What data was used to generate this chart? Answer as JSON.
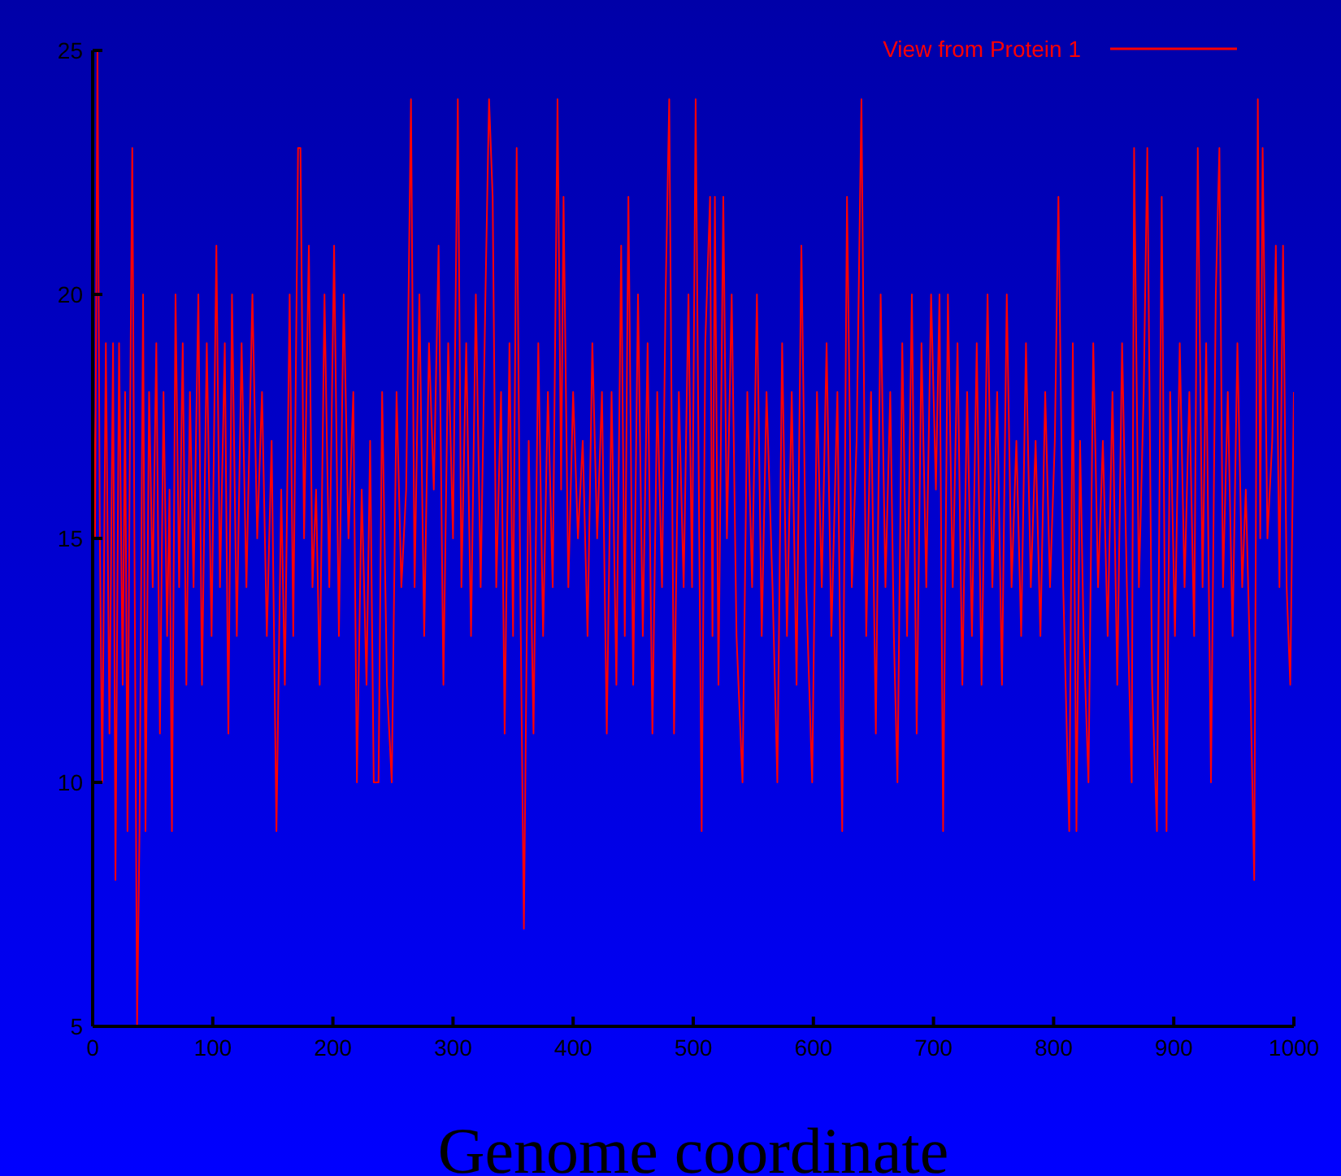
{
  "chart_data": {
    "type": "line",
    "xlabel": "Genome coordinate",
    "legend": "top right",
    "xlim": [
      0,
      1000
    ],
    "xticks": [
      0,
      100,
      200,
      300,
      400,
      500,
      600,
      700,
      800,
      900,
      1000
    ],
    "ylim": [
      5,
      25
    ],
    "yticks": [
      5,
      10,
      15,
      20,
      25
    ],
    "x": [
      0,
      2,
      4,
      6,
      8,
      11,
      14,
      17,
      19,
      22,
      25,
      27,
      29,
      31,
      33,
      35,
      37,
      39,
      42,
      44,
      47,
      50,
      53,
      56,
      59,
      62,
      64,
      66,
      69,
      72,
      75,
      78,
      81,
      84,
      88,
      91,
      95,
      99,
      103,
      106,
      110,
      113,
      116,
      120,
      124,
      128,
      133,
      137,
      141,
      145,
      149,
      153,
      157,
      160,
      164,
      167,
      171,
      173,
      176,
      180,
      183,
      186,
      189,
      193,
      197,
      201,
      205,
      209,
      213,
      217,
      220,
      224,
      228,
      231,
      234,
      238,
      241,
      245,
      249,
      253,
      257,
      261,
      265,
      268,
      272,
      276,
      280,
      284,
      288,
      292,
      296,
      300,
      304,
      307,
      311,
      315,
      319,
      323,
      327,
      330,
      333,
      336,
      340,
      343,
      347,
      350,
      353,
      356,
      359,
      363,
      367,
      371,
      375,
      379,
      383,
      387,
      390,
      392,
      396,
      400,
      404,
      408,
      412,
      416,
      420,
      424,
      428,
      432,
      436,
      440,
      443,
      446,
      450,
      454,
      458,
      462,
      466,
      470,
      474,
      477,
      480,
      484,
      488,
      492,
      496,
      499,
      502,
      505,
      507,
      510,
      514,
      516,
      518,
      521,
      525,
      528,
      532,
      536,
      541,
      545,
      549,
      553,
      557,
      561,
      566,
      570,
      574,
      578,
      582,
      586,
      590,
      594,
      599,
      603,
      607,
      611,
      615,
      620,
      624,
      628,
      632,
      636,
      640,
      644,
      648,
      652,
      656,
      660,
      664,
      667,
      670,
      674,
      678,
      682,
      686,
      690,
      694,
      698,
      702,
      705,
      708,
      712,
      716,
      720,
      724,
      728,
      732,
      736,
      740,
      745,
      749,
      753,
      757,
      761,
      765,
      769,
      773,
      777,
      781,
      785,
      789,
      793,
      797,
      801,
      804,
      808,
      813,
      816,
      819,
      822,
      825,
      829,
      833,
      837,
      841,
      845,
      849,
      853,
      857,
      861,
      865,
      867,
      871,
      875,
      878,
      882,
      886,
      890,
      894,
      897,
      901,
      905,
      909,
      913,
      917,
      920,
      924,
      927,
      931,
      935,
      938,
      941,
      945,
      949,
      953,
      957,
      960,
      963,
      967,
      970,
      972,
      974,
      978,
      982,
      985,
      988,
      991,
      994,
      997,
      1000
    ],
    "series": [
      {
        "name": "View from Protein 1",
        "color": "#ff0000",
        "values": [
          19,
          15,
          25,
          15,
          10,
          19,
          11,
          19,
          8,
          19,
          12,
          18,
          9,
          17,
          23,
          14,
          5,
          9,
          20,
          9,
          18,
          14,
          19,
          11,
          18,
          13,
          16,
          9,
          20,
          14,
          19,
          12,
          18,
          14,
          20,
          12,
          19,
          13,
          21,
          14,
          19,
          11,
          20,
          13,
          19,
          14,
          20,
          15,
          18,
          13,
          17,
          9,
          16,
          12,
          20,
          13,
          23,
          23,
          15,
          21,
          14,
          16,
          12,
          20,
          14,
          21,
          13,
          20,
          15,
          18,
          10,
          16,
          12,
          17,
          10,
          10,
          18,
          12,
          10,
          18,
          14,
          16,
          24,
          14,
          20,
          13,
          19,
          16,
          21,
          12,
          19,
          15,
          24,
          14,
          19,
          13,
          20,
          14,
          20,
          24,
          22,
          14,
          18,
          11,
          19,
          13,
          23,
          14,
          7,
          17,
          11,
          19,
          13,
          18,
          14,
          24,
          16,
          22,
          14,
          18,
          15,
          17,
          13,
          19,
          15,
          18,
          11,
          18,
          12,
          21,
          13,
          22,
          12,
          20,
          13,
          19,
          11,
          18,
          14,
          20,
          24,
          11,
          18,
          14,
          20,
          14,
          24,
          15,
          9,
          19,
          22,
          13,
          22,
          12,
          22,
          15,
          20,
          13,
          10,
          18,
          14,
          20,
          13,
          18,
          14,
          10,
          19,
          13,
          18,
          12,
          21,
          14,
          10,
          18,
          14,
          19,
          13,
          18,
          9,
          22,
          14,
          17,
          24,
          13,
          18,
          11,
          20,
          14,
          18,
          13,
          10,
          19,
          13,
          20,
          11,
          19,
          14,
          20,
          16,
          20,
          9,
          20,
          14,
          19,
          12,
          18,
          13,
          19,
          12,
          20,
          14,
          18,
          12,
          20,
          14,
          17,
          13,
          19,
          14,
          17,
          13,
          18,
          14,
          17,
          22,
          14,
          9,
          19,
          9,
          17,
          13,
          10,
          19,
          14,
          17,
          13,
          18,
          12,
          19,
          14,
          10,
          23,
          14,
          18,
          23,
          12,
          9,
          22,
          9,
          18,
          13,
          19,
          14,
          18,
          13,
          23,
          14,
          19,
          10,
          20,
          23,
          14,
          18,
          13,
          19,
          14,
          16,
          13,
          8,
          24,
          15,
          23,
          15,
          17,
          21,
          14,
          21,
          14,
          12,
          18
        ]
      }
    ]
  }
}
